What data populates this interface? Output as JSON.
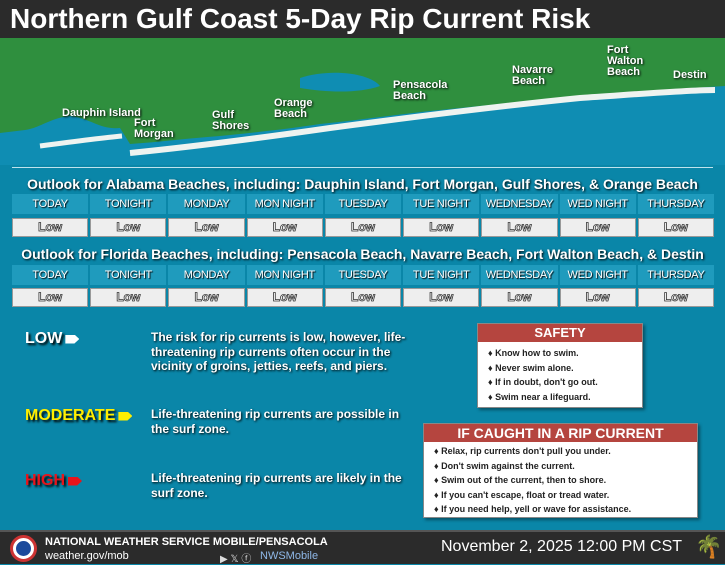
{
  "title": "Northern Gulf Coast 5-Day Rip Current Risk",
  "map_labels": [
    "Dauphin Island",
    "Fort Morgan",
    "Gulf Shores",
    "Orange Beach",
    "Pensacola Beach",
    "Navarre Beach",
    "Fort Walton Beach",
    "Destin"
  ],
  "alabama": {
    "heading": "Outlook for Alabama Beaches, including: Dauphin Island, Fort Morgan, Gulf Shores, & Orange Beach",
    "days": [
      "TODAY",
      "TONIGHT",
      "MONDAY",
      "MON NIGHT",
      "TUESDAY",
      "TUE NIGHT",
      "WEDNESDAY",
      "WED NIGHT",
      "THURSDAY"
    ],
    "risk": [
      "Low",
      "Low",
      "Low",
      "Low",
      "Low",
      "Low",
      "Low",
      "Low",
      "Low"
    ]
  },
  "florida": {
    "heading": "Outlook for Florida Beaches, including: Pensacola Beach, Navarre Beach, Fort Walton Beach, & Destin",
    "days": [
      "TODAY",
      "TONIGHT",
      "MONDAY",
      "MON NIGHT",
      "TUESDAY",
      "TUE NIGHT",
      "WEDNESDAY",
      "WED NIGHT",
      "THURSDAY"
    ],
    "risk": [
      "Low",
      "Low",
      "Low",
      "Low",
      "Low",
      "Low",
      "Low",
      "Low",
      "Low"
    ]
  },
  "legend": [
    {
      "level": "LOW",
      "color": "#ffffff",
      "text": "The risk for rip currents is low, however, life-threatening rip currents often occur in the vicinity of groins, jetties, reefs, and piers."
    },
    {
      "level": "MODERATE",
      "color": "#ffee00",
      "text": "Life-threatening rip currents are possible in the surf zone."
    },
    {
      "level": "HIGH",
      "color": "#e8141b",
      "text": "Life-threatening rip currents are likely in the surf zone."
    }
  ],
  "safety": {
    "title": "SAFETY",
    "items": [
      "Know how to swim.",
      "Never swim alone.",
      "If in doubt, don't go out.",
      "Swim near a lifeguard."
    ]
  },
  "caught": {
    "title": "IF CAUGHT IN A RIP CURRENT",
    "items": [
      "Relax, rip currents don't pull you under.",
      "Don't swim against the current.",
      "Swim out of the current, then to shore.",
      "If you can't escape, float or tread water.",
      "If you need help, yell or wave for assistance."
    ]
  },
  "footer": {
    "office": "NATIONAL WEATHER SERVICE MOBILE/PENSACOLA",
    "website": "weather.gov/mob",
    "social": "NWSMobile",
    "date": "November 2, 2025 12:00 PM CST"
  }
}
